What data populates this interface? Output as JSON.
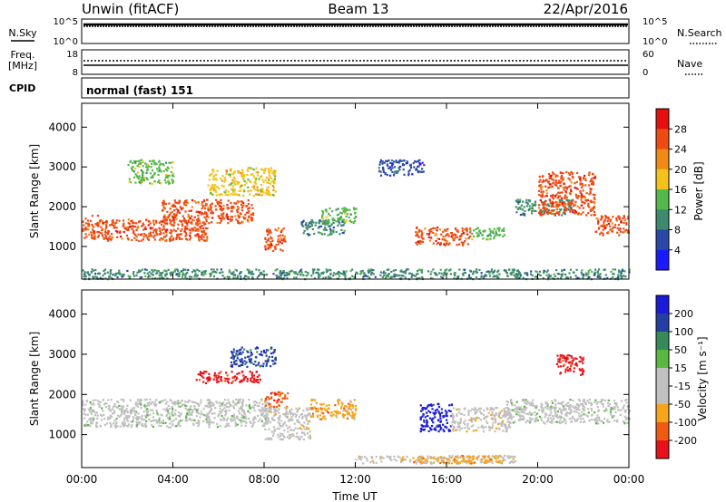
{
  "header": {
    "station": "Unwin (fitACF)",
    "beam": "Beam 13",
    "date": "22/Apr/2016"
  },
  "top_panels": {
    "nsky_label": "N.Sky",
    "nsky_ticks_left": [
      "10^5",
      "10^0"
    ],
    "nsearch_label": "N.Search",
    "nsearch_ticks_right": [
      "10^5",
      "10^0"
    ],
    "freq_label_1": "Freq.",
    "freq_label_2": "[MHz]",
    "freq_ticks_left": [
      "18",
      "8"
    ],
    "nave_label": "Nave",
    "nave_ticks_right": [
      "60",
      "0"
    ],
    "cpid_label": "CPID",
    "cpid_text": "normal (fast) 151"
  },
  "colors": {
    "power_scale": [
      "#1a1aff",
      "#2a48a8",
      "#3e8a6e",
      "#55b84a",
      "#f4c21a",
      "#f08a15",
      "#ee4a12",
      "#e60f0f"
    ],
    "velocity_scale": [
      "#e8101a",
      "#f05a12",
      "#f6a41a",
      "#c0c0c0",
      "#c0c0c0",
      "#58b840",
      "#368a5a",
      "#243ea4",
      "#1a1ad8"
    ]
  },
  "chart_data": [
    {
      "type": "heatmap",
      "panel": "power",
      "xlabel": "",
      "ylabel": "Slant Range [km]",
      "x_ticks": [
        "00:00",
        "04:00",
        "08:00",
        "12:00",
        "16:00",
        "20:00",
        "00:00"
      ],
      "y_ticks": [
        "1000",
        "2000",
        "3000",
        "4000"
      ],
      "xlim": [
        0,
        24
      ],
      "ylim": [
        180,
        4600
      ],
      "colorbar": {
        "label": "Power [dB]",
        "ticks": [
          "4",
          "8",
          "12",
          "16",
          "20",
          "24",
          "28"
        ],
        "range": [
          0,
          32
        ]
      },
      "regions": [
        {
          "t": [
            0.0,
            1.0
          ],
          "r": [
            1200,
            1800
          ],
          "value": 26
        },
        {
          "t": [
            1.0,
            5.5
          ],
          "r": [
            1150,
            1700
          ],
          "value": 27
        },
        {
          "t": [
            3.5,
            7.5
          ],
          "r": [
            1600,
            2200
          ],
          "value": 26
        },
        {
          "t": [
            5.5,
            8.5
          ],
          "r": [
            2300,
            3000
          ],
          "value": 18
        },
        {
          "t": [
            8.0,
            8.9
          ],
          "r": [
            900,
            1500
          ],
          "value": 24
        },
        {
          "t": [
            2.0,
            4.0
          ],
          "r": [
            2600,
            3200
          ],
          "value": 14
        },
        {
          "t": [
            9.6,
            11.5
          ],
          "r": [
            1300,
            1700
          ],
          "value": 9
        },
        {
          "t": [
            10.5,
            12.0
          ],
          "r": [
            1600,
            2000
          ],
          "value": 12
        },
        {
          "t": [
            13.0,
            15.0
          ],
          "r": [
            2800,
            3200
          ],
          "value": 6
        },
        {
          "t": [
            14.6,
            17.0
          ],
          "r": [
            1050,
            1500
          ],
          "value": 24
        },
        {
          "t": [
            17.0,
            18.5
          ],
          "r": [
            1200,
            1500
          ],
          "value": 14
        },
        {
          "t": [
            19.0,
            21.5
          ],
          "r": [
            1800,
            2200
          ],
          "value": 10
        },
        {
          "t": [
            20.0,
            22.5
          ],
          "r": [
            1800,
            2900
          ],
          "value": 24
        },
        {
          "t": [
            22.5,
            24.0
          ],
          "r": [
            1300,
            1800
          ],
          "value": 25
        },
        {
          "t": [
            0.0,
            24.0
          ],
          "r": [
            200,
            450
          ],
          "value": 8
        }
      ]
    },
    {
      "type": "heatmap",
      "panel": "velocity",
      "xlabel": "Time UT",
      "ylabel": "Slant Range [km]",
      "x_ticks": [
        "00:00",
        "04:00",
        "08:00",
        "12:00",
        "16:00",
        "20:00",
        "00:00"
      ],
      "y_ticks": [
        "1000",
        "2000",
        "3000",
        "4000"
      ],
      "xlim": [
        0,
        24
      ],
      "ylim": [
        180,
        4600
      ],
      "colorbar": {
        "label": "Velocity [m s⁻¹]",
        "ticks": [
          "200",
          "100",
          "50",
          "15",
          "-15",
          "-50",
          "-100",
          "-200"
        ],
        "range": [
          -250,
          250
        ]
      },
      "regions": [
        {
          "t": [
            0.0,
            8.2
          ],
          "r": [
            1200,
            1900
          ],
          "value": 0
        },
        {
          "t": [
            5.0,
            7.8
          ],
          "r": [
            2300,
            2600
          ],
          "value": -200
        },
        {
          "t": [
            8.0,
            9.0
          ],
          "r": [
            1700,
            2100
          ],
          "value": -190
        },
        {
          "t": [
            8.0,
            10.0
          ],
          "r": [
            900,
            1700
          ],
          "value": -55
        },
        {
          "t": [
            10.0,
            12.0
          ],
          "r": [
            1400,
            1900
          ],
          "value": -110
        },
        {
          "t": [
            14.8,
            16.2
          ],
          "r": [
            1100,
            1800
          ],
          "value": 210
        },
        {
          "t": [
            16.2,
            18.8
          ],
          "r": [
            1100,
            1700
          ],
          "value": -50
        },
        {
          "t": [
            18.5,
            24.0
          ],
          "r": [
            1300,
            1900
          ],
          "value": 0
        },
        {
          "t": [
            20.8,
            22.0
          ],
          "r": [
            2500,
            3000
          ],
          "value": -200
        },
        {
          "t": [
            12.0,
            19.0
          ],
          "r": [
            300,
            500
          ],
          "value": -50
        },
        {
          "t": [
            14.5,
            18.5
          ],
          "r": [
            300,
            500
          ],
          "value": -110
        },
        {
          "t": [
            6.5,
            8.5
          ],
          "r": [
            2700,
            3200
          ],
          "value": 180
        }
      ]
    }
  ]
}
